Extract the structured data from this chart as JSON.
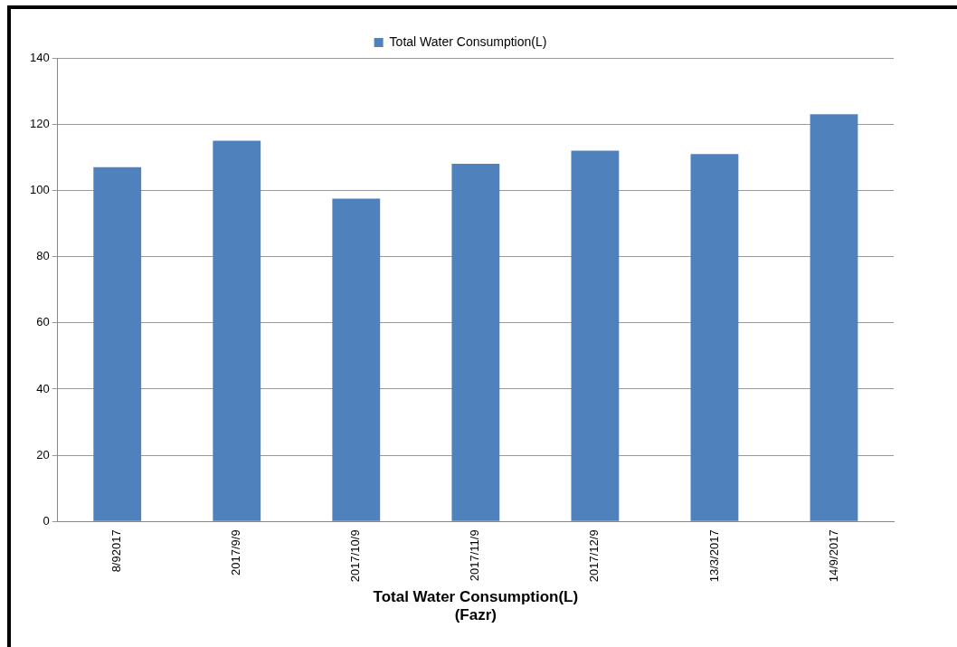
{
  "chart_data": {
    "type": "bar",
    "xlabel": "Total Water Consumption(L)\n(Fazr)",
    "categories": [
      "8/92017",
      "2017/9/9",
      "2017/10/9",
      "2017/11/9",
      "2017/12/9",
      "13/3/2017",
      "14/9/2017"
    ],
    "series": [
      {
        "name": "Total Water Consumption(L)",
        "color": "#4f81bd",
        "values": [
          107,
          115,
          97.5,
          108,
          112,
          111,
          123
        ]
      }
    ],
    "ylim": [
      0,
      140
    ],
    "yticks": [
      0,
      20,
      40,
      60,
      80,
      100,
      120,
      140
    ],
    "grid": "y",
    "legend": "top"
  }
}
